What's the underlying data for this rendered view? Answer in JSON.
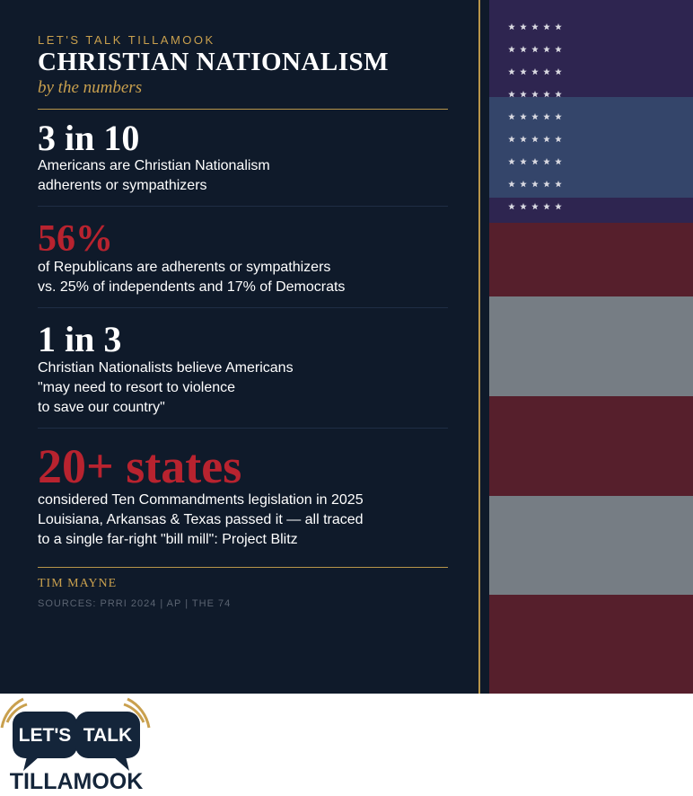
{
  "header": {
    "kicker": "LET'S TALK TILLAMOOK",
    "title": "CHRISTIAN NATIONALISM",
    "subtitle": "by the numbers"
  },
  "stats": [
    {
      "headline": "3 in 10",
      "color": "#ffffff",
      "lines": [
        "Americans are Christian Nationalism",
        "adherents or sympathizers"
      ]
    },
    {
      "headline": "56%",
      "color": "#b8232f",
      "lines": [
        "of Republicans are adherents or sympathizers",
        "vs. 25% of independents and 17% of Democrats"
      ]
    },
    {
      "headline": "1 in 3",
      "color": "#ffffff",
      "lines": [
        "Christian Nationalists believe Americans",
        "\"may need to resort to violence",
        "to save our country\""
      ]
    },
    {
      "headline": "20+ states",
      "color": "#b8232f",
      "lines": [
        "considered Ten Commandments legislation in 2025",
        "Louisiana, Arkansas & Texas passed it — all traced",
        "to a single far-right \"bill mill\": Project Blitz"
      ]
    }
  ],
  "footer": {
    "author": "TIM MAYNE",
    "sources": "SOURCES: PRRI 2024 | AP | THE 74"
  },
  "logo": {
    "word1": "LET'S",
    "word2": "TALK",
    "word3": "TILLAMOOK"
  }
}
